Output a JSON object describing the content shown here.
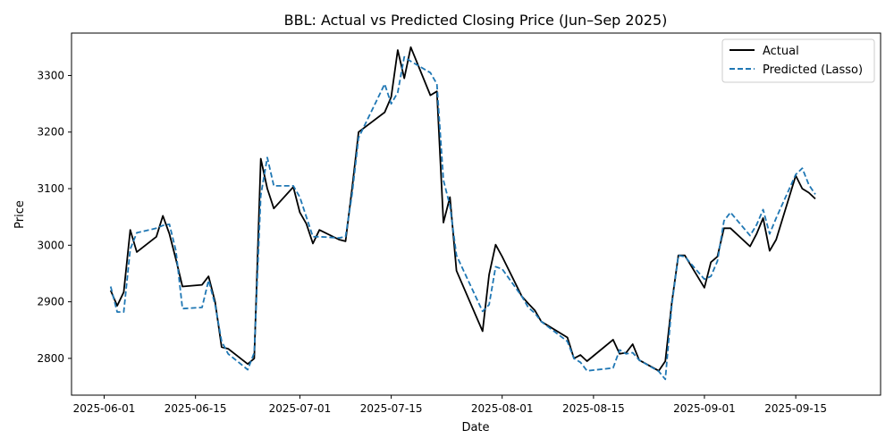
{
  "chart_data": {
    "type": "line",
    "title": "BBL: Actual vs Predicted Closing Price (Jun–Sep 2025)",
    "xlabel": "Date",
    "ylabel": "Price",
    "xlim": [
      "2025-05-27",
      "2025-09-28"
    ],
    "ylim": [
      2735,
      3375
    ],
    "x_ticks": [
      "2025-06-01",
      "2025-06-15",
      "2025-07-01",
      "2025-07-15",
      "2025-08-01",
      "2025-08-15",
      "2025-09-01",
      "2025-09-15"
    ],
    "y_ticks": [
      2800,
      2900,
      3000,
      3100,
      3200,
      3300
    ],
    "grid": false,
    "legend_position": "top-right",
    "x": [
      "2025-06-02",
      "2025-06-03",
      "2025-06-04",
      "2025-06-05",
      "2025-06-06",
      "2025-06-09",
      "2025-06-10",
      "2025-06-11",
      "2025-06-12",
      "2025-06-13",
      "2025-06-16",
      "2025-06-17",
      "2025-06-18",
      "2025-06-19",
      "2025-06-20",
      "2025-06-23",
      "2025-06-24",
      "2025-06-25",
      "2025-06-26",
      "2025-06-27",
      "2025-06-30",
      "2025-07-01",
      "2025-07-02",
      "2025-07-03",
      "2025-07-04",
      "2025-07-07",
      "2025-07-08",
      "2025-07-09",
      "2025-07-10",
      "2025-07-14",
      "2025-07-15",
      "2025-07-16",
      "2025-07-17",
      "2025-07-18",
      "2025-07-21",
      "2025-07-22",
      "2025-07-23",
      "2025-07-24",
      "2025-07-25",
      "2025-07-29",
      "2025-07-30",
      "2025-07-31",
      "2025-08-01",
      "2025-08-04",
      "2025-08-05",
      "2025-08-06",
      "2025-08-07",
      "2025-08-11",
      "2025-08-12",
      "2025-08-13",
      "2025-08-14",
      "2025-08-18",
      "2025-08-19",
      "2025-08-20",
      "2025-08-21",
      "2025-08-22",
      "2025-08-25",
      "2025-08-26",
      "2025-08-27",
      "2025-08-28",
      "2025-08-29",
      "2025-09-01",
      "2025-09-02",
      "2025-09-03",
      "2025-09-04",
      "2025-09-05",
      "2025-09-08",
      "2025-09-09",
      "2025-09-10",
      "2025-09-11",
      "2025-09-12",
      "2025-09-15",
      "2025-09-16",
      "2025-09-17",
      "2025-09-18"
    ],
    "series": [
      {
        "name": "Actual",
        "color": "#000000",
        "dash": "solid",
        "values": [
          2920,
          2893,
          2917,
          3027,
          2988,
          3015,
          3052,
          3020,
          2975,
          2927,
          2930,
          2945,
          2900,
          2820,
          2817,
          2790,
          2800,
          3153,
          3100,
          3065,
          3103,
          3058,
          3038,
          3003,
          3027,
          3010,
          3007,
          3100,
          3200,
          3235,
          3262,
          3345,
          3295,
          3350,
          3265,
          3272,
          3040,
          3085,
          2955,
          2848,
          2948,
          3001,
          2980,
          2910,
          2897,
          2885,
          2865,
          2837,
          2800,
          2806,
          2795,
          2833,
          2808,
          2810,
          2825,
          2797,
          2778,
          2795,
          2899,
          2982,
          2982,
          2925,
          2970,
          2980,
          3030,
          3030,
          2998,
          3020,
          3048,
          2990,
          3010,
          3123,
          3100,
          3093,
          3082
        ]
      },
      {
        "name": "Predicted (Lasso)",
        "color": "#1f77b4",
        "dash": "dashed",
        "values": [
          2927,
          2882,
          2882,
          2993,
          3022,
          3030,
          3035,
          3037,
          2990,
          2888,
          2890,
          2938,
          2895,
          2830,
          2808,
          2780,
          2810,
          3088,
          3155,
          3105,
          3105,
          3085,
          3050,
          3015,
          3015,
          3013,
          3015,
          3090,
          3190,
          3285,
          3250,
          3270,
          3333,
          3325,
          3305,
          3285,
          3115,
          3070,
          2982,
          2883,
          2895,
          2962,
          2958,
          2910,
          2890,
          2880,
          2865,
          2830,
          2800,
          2793,
          2778,
          2783,
          2815,
          2808,
          2810,
          2797,
          2777,
          2763,
          2895,
          2982,
          2980,
          2940,
          2945,
          2972,
          3043,
          3058,
          3017,
          3036,
          3063,
          3020,
          3048,
          3125,
          3136,
          3107,
          3090
        ]
      }
    ]
  }
}
